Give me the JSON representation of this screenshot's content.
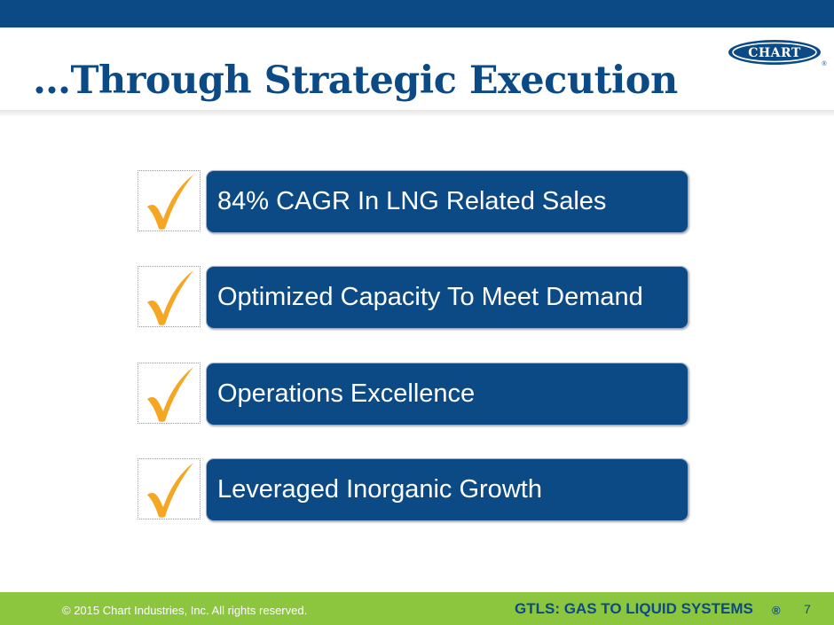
{
  "slide": {
    "title": "…Through Strategic Execution"
  },
  "logo": {
    "text": "CHART",
    "registered": "®"
  },
  "items": [
    {
      "label": "84% CAGR In LNG Related Sales",
      "checked": true
    },
    {
      "label": "Optimized Capacity To Meet Demand",
      "checked": true
    },
    {
      "label": "Operations Excellence",
      "checked": true
    },
    {
      "label": "Leveraged Inorganic Growth",
      "checked": true
    }
  ],
  "footer": {
    "copyright": "© 2015 Chart Industries, Inc. All rights reserved.",
    "tagline": "GTLS: GAS TO LIQUID SYSTEMS",
    "registered": "®",
    "page_number": "7"
  },
  "colors": {
    "brand_blue": "#0c4a86",
    "footer_green": "#8cc63f",
    "check_orange": "#f5a623"
  },
  "icons": {
    "check": "checkmark-icon"
  }
}
